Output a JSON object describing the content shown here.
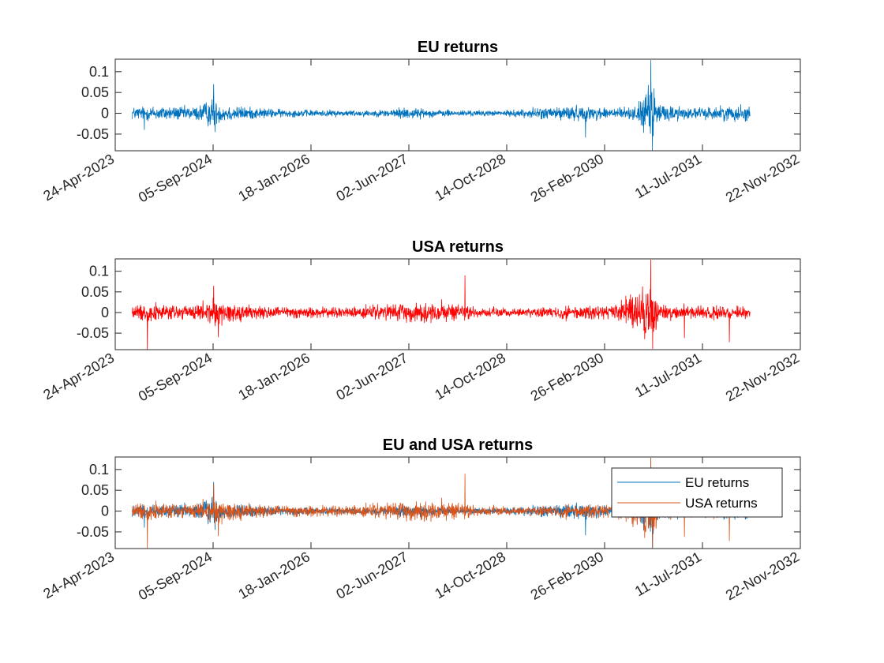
{
  "chart_data": [
    {
      "type": "line",
      "title": "EU returns",
      "xlabel": "",
      "ylabel": "",
      "xlim": [
        "2023-04-24",
        "2032-11-22"
      ],
      "ylim": [
        -0.09,
        0.13
      ],
      "yticks": [
        0.1,
        0.05,
        0,
        -0.05
      ],
      "ytick_labels": [
        "0.1",
        "0.05",
        "0",
        "-0.05"
      ],
      "xtick_labels": [
        "24-Apr-2023",
        "05-Sep-2024",
        "18-Jan-2026",
        "02-Jun-2027",
        "14-Oct-2028",
        "26-Feb-2030",
        "11-Jul-2031",
        "22-Nov-2032"
      ],
      "data_range": [
        "2023-07-20",
        "2032-03-10"
      ],
      "series": [
        {
          "color": "#0072BD",
          "envelope": [
            {
              "date": "2023-07-20",
              "y": 0.03
            },
            {
              "date": "2023-12-01",
              "y": 0.035
            },
            {
              "date": "2024-06-01",
              "y": 0.03
            },
            {
              "date": "2024-09-08",
              "y": 0.07
            },
            {
              "date": "2024-09-25",
              "y": 0.045
            },
            {
              "date": "2025-03-01",
              "y": 0.028
            },
            {
              "date": "2025-09-01",
              "y": 0.018
            },
            {
              "date": "2026-04-01",
              "y": 0.015
            },
            {
              "date": "2027-01-01",
              "y": 0.015
            },
            {
              "date": "2027-06-01",
              "y": 0.03
            },
            {
              "date": "2027-09-01",
              "y": 0.018
            },
            {
              "date": "2028-03-01",
              "y": 0.014
            },
            {
              "date": "2028-10-01",
              "y": 0.012
            },
            {
              "date": "2029-02-01",
              "y": 0.022
            },
            {
              "date": "2029-08-01",
              "y": 0.035
            },
            {
              "date": "2030-02-01",
              "y": 0.03
            },
            {
              "date": "2030-08-01",
              "y": 0.028
            },
            {
              "date": "2030-10-20",
              "y": 0.128
            },
            {
              "date": "2030-12-01",
              "y": 0.045
            },
            {
              "date": "2031-06-01",
              "y": 0.025
            },
            {
              "date": "2031-12-01",
              "y": 0.035
            },
            {
              "date": "2032-03-10",
              "y": 0.04
            }
          ],
          "extremes": [
            {
              "date": "2024-09-08",
              "y": 0.07
            },
            {
              "date": "2024-09-15",
              "y": -0.045
            },
            {
              "date": "2023-09-20",
              "y": -0.04
            },
            {
              "date": "2029-11-20",
              "y": -0.058
            },
            {
              "date": "2030-10-20",
              "y": 0.128
            },
            {
              "date": "2030-10-28",
              "y": -0.09
            },
            {
              "date": "2030-11-05",
              "y": 0.06
            }
          ]
        }
      ]
    },
    {
      "type": "line",
      "title": "USA returns",
      "xlabel": "",
      "ylabel": "",
      "xlim": [
        "2023-04-24",
        "2032-11-22"
      ],
      "ylim": [
        -0.09,
        0.13
      ],
      "yticks": [
        0.1,
        0.05,
        0,
        -0.05
      ],
      "ytick_labels": [
        "0.1",
        "0.05",
        "0",
        "-0.05"
      ],
      "xtick_labels": [
        "24-Apr-2023",
        "05-Sep-2024",
        "18-Jan-2026",
        "02-Jun-2027",
        "14-Oct-2028",
        "26-Feb-2030",
        "11-Jul-2031",
        "22-Nov-2032"
      ],
      "data_range": [
        "2023-07-20",
        "2032-03-10"
      ],
      "series": [
        {
          "color": "#FF0000",
          "envelope": [
            {
              "date": "2023-07-20",
              "y": 0.035
            },
            {
              "date": "2023-12-01",
              "y": 0.04
            },
            {
              "date": "2024-06-01",
              "y": 0.035
            },
            {
              "date": "2024-09-08",
              "y": 0.06
            },
            {
              "date": "2024-12-01",
              "y": 0.045
            },
            {
              "date": "2025-06-01",
              "y": 0.03
            },
            {
              "date": "2026-03-01",
              "y": 0.025
            },
            {
              "date": "2026-11-01",
              "y": 0.03
            },
            {
              "date": "2027-06-01",
              "y": 0.04
            },
            {
              "date": "2027-12-01",
              "y": 0.045
            },
            {
              "date": "2028-05-01",
              "y": 0.025
            },
            {
              "date": "2028-11-01",
              "y": 0.018
            },
            {
              "date": "2029-04-01",
              "y": 0.022
            },
            {
              "date": "2029-10-01",
              "y": 0.035
            },
            {
              "date": "2030-04-01",
              "y": 0.03
            },
            {
              "date": "2030-10-20",
              "y": 0.128
            },
            {
              "date": "2030-12-01",
              "y": 0.04
            },
            {
              "date": "2031-06-01",
              "y": 0.03
            },
            {
              "date": "2031-12-01",
              "y": 0.03
            },
            {
              "date": "2032-03-10",
              "y": 0.025
            }
          ],
          "extremes": [
            {
              "date": "2023-10-05",
              "y": -0.092
            },
            {
              "date": "2024-09-08",
              "y": 0.065
            },
            {
              "date": "2024-10-01",
              "y": -0.06
            },
            {
              "date": "2028-03-15",
              "y": 0.09
            },
            {
              "date": "2030-10-20",
              "y": 0.128
            },
            {
              "date": "2030-10-30",
              "y": -0.088
            },
            {
              "date": "2031-04-10",
              "y": -0.062
            },
            {
              "date": "2031-11-25",
              "y": -0.072
            }
          ]
        }
      ]
    },
    {
      "type": "line",
      "title": "EU and USA returns",
      "xlabel": "",
      "ylabel": "",
      "xlim": [
        "2023-04-24",
        "2032-11-22"
      ],
      "ylim": [
        -0.09,
        0.13
      ],
      "yticks": [
        0.1,
        0.05,
        0,
        -0.05
      ],
      "ytick_labels": [
        "0.1",
        "0.05",
        "0",
        "-0.05"
      ],
      "xtick_labels": [
        "24-Apr-2023",
        "05-Sep-2024",
        "18-Jan-2026",
        "02-Jun-2027",
        "14-Oct-2028",
        "26-Feb-2030",
        "11-Jul-2031",
        "22-Nov-2032"
      ],
      "legend": {
        "placement": "top-right",
        "entries": [
          "EU returns",
          "USA returns"
        ]
      },
      "series_refs": [
        {
          "name": "EU returns",
          "color": "#0072BD",
          "from_chart": 0
        },
        {
          "name": "USA returns",
          "color": "#D95319",
          "from_chart": 1
        }
      ]
    }
  ]
}
